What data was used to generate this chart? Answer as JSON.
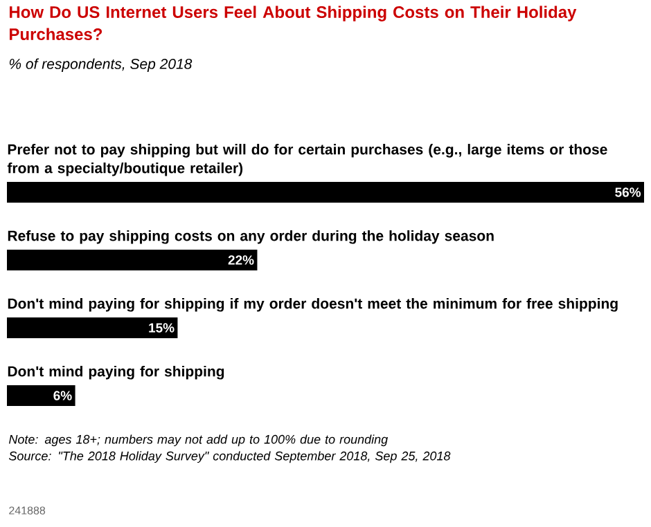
{
  "chart_data": {
    "type": "bar",
    "orientation": "horizontal",
    "title": "How Do US Internet Users Feel About Shipping Costs on Their Holiday Purchases?",
    "subtitle": "% of respondents, Sep 2018",
    "categories": [
      "Prefer not to pay shipping but will do for certain purchases (e.g., large items or those from a specialty/boutique retailer)",
      "Refuse to pay shipping costs on any order during the holiday season",
      "Don't mind paying for shipping if my order doesn't meet the minimum for free shipping",
      "Don't mind paying for shipping"
    ],
    "values": [
      56,
      22,
      15,
      6
    ],
    "value_labels": [
      "56%",
      "22%",
      "15%",
      "6%"
    ],
    "color": "#000000",
    "annotations": [
      "Note: ages 18+; numbers may not add up to 100% due to rounding",
      "Source: \"The 2018 Holiday Survey\" conducted September 2018, Sep 25, 2018",
      "241888"
    ]
  }
}
